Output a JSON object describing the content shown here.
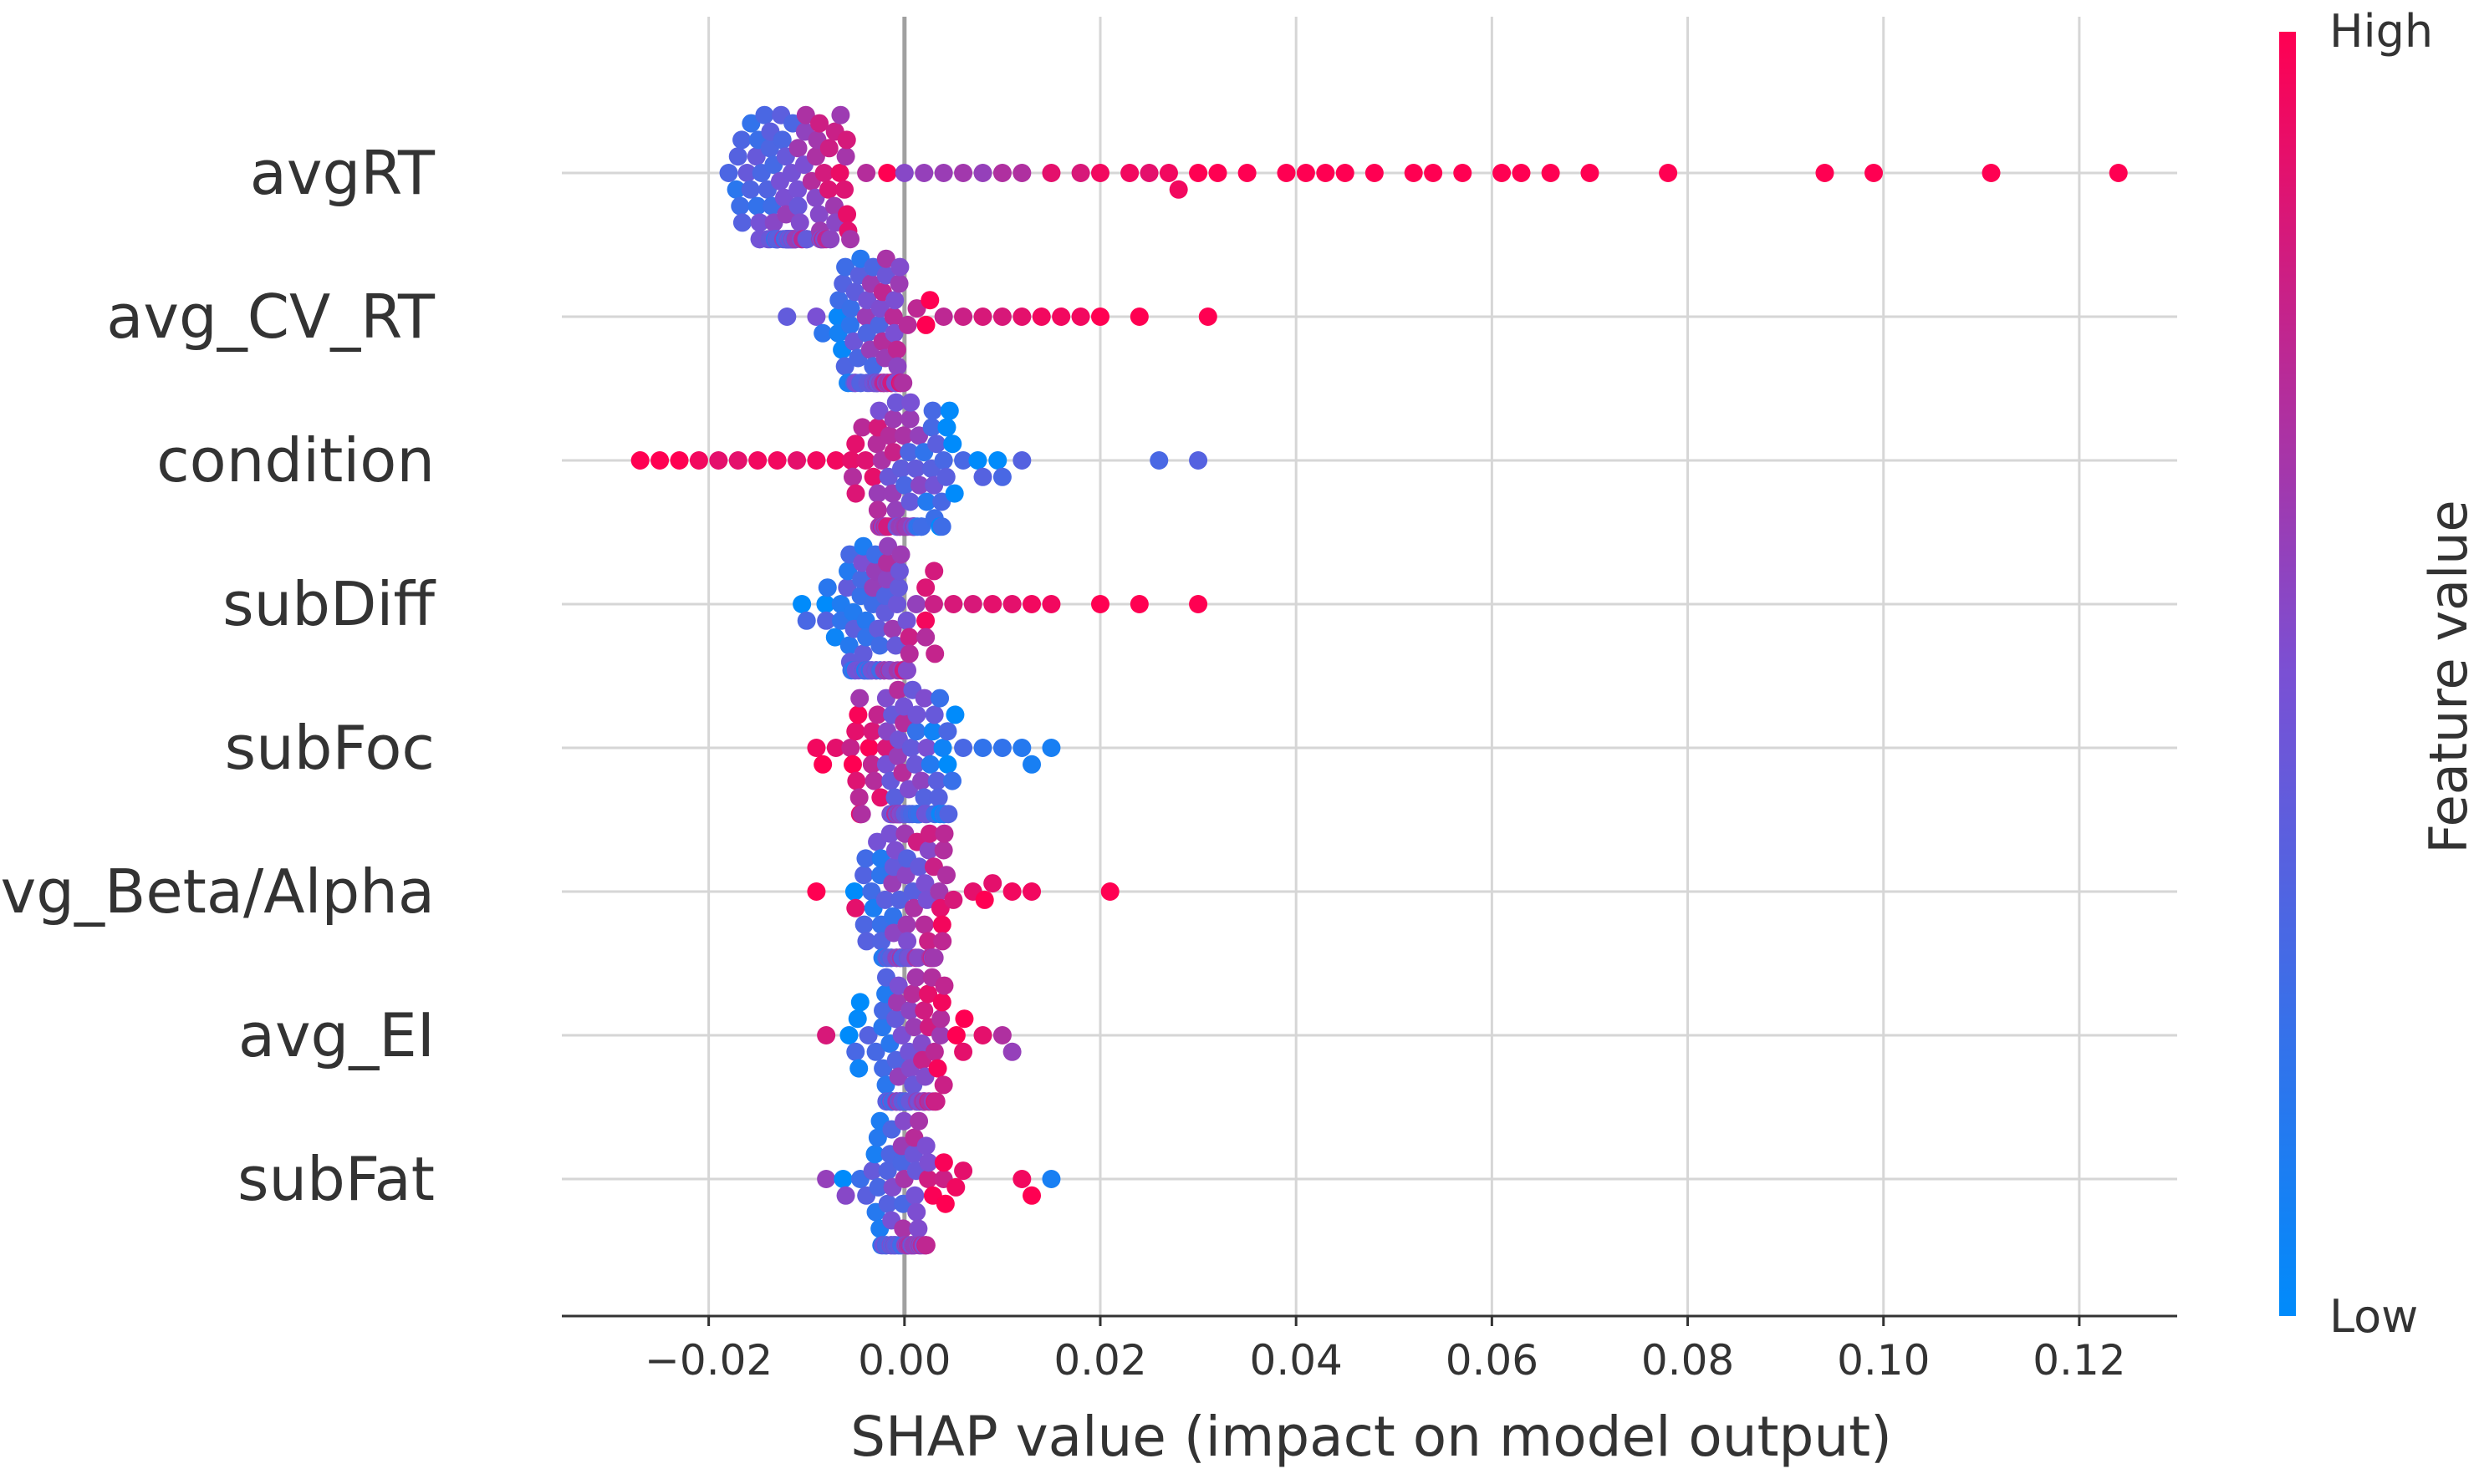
{
  "chart_data": {
    "type": "scatter",
    "subtype": "shap-beeswarm",
    "xlabel": "SHAP value (impact on model output)",
    "xlim": [
      -0.035,
      0.13
    ],
    "x_ticks": [
      -0.02,
      0.0,
      0.02,
      0.04,
      0.06,
      0.08,
      0.1,
      0.12
    ],
    "x_tick_labels": [
      "−0.02",
      "0.00",
      "0.02",
      "0.04",
      "0.06",
      "0.08",
      "0.10",
      "0.12"
    ],
    "grid": true,
    "colorbar": {
      "title": "Feature value",
      "high_label": "High",
      "low_label": "Low",
      "low_color": "#008bfb",
      "mid_color": "#7a50d4",
      "high_color": "#ff0052"
    },
    "features": [
      {
        "name": "avgRT",
        "center": -0.011,
        "spread": 0.0035,
        "n": 110,
        "high_side": 1,
        "tail": [
          [
            0.0,
            0.55
          ],
          [
            0.002,
            0.6
          ],
          [
            0.004,
            0.62
          ],
          [
            0.006,
            0.65
          ],
          [
            0.008,
            0.6
          ],
          [
            0.01,
            0.7
          ],
          [
            0.012,
            0.7
          ],
          [
            0.015,
            0.9
          ],
          [
            0.018,
            0.85
          ],
          [
            0.02,
            0.95
          ],
          [
            0.023,
            0.95
          ],
          [
            0.025,
            0.9
          ],
          [
            0.027,
            0.95
          ],
          [
            0.028,
            0.95
          ],
          [
            0.03,
            1.0
          ],
          [
            0.032,
            1.0
          ],
          [
            0.035,
            1.0
          ],
          [
            0.039,
            1.0
          ],
          [
            0.041,
            1.0
          ],
          [
            0.043,
            1.0
          ],
          [
            0.045,
            1.0
          ],
          [
            0.048,
            1.0
          ],
          [
            0.052,
            1.0
          ],
          [
            0.054,
            1.0
          ],
          [
            0.057,
            1.0
          ],
          [
            0.061,
            1.0
          ],
          [
            0.063,
            1.0
          ],
          [
            0.066,
            1.0
          ],
          [
            0.07,
            1.0
          ],
          [
            0.078,
            1.0
          ],
          [
            0.094,
            1.0
          ],
          [
            0.099,
            1.0
          ],
          [
            0.111,
            1.0
          ],
          [
            0.124,
            1.0
          ]
        ]
      },
      {
        "name": "avg_CV_RT",
        "center": -0.003,
        "spread": 0.0022,
        "n": 80,
        "high_side": 1,
        "tail": [
          [
            0.004,
            0.75
          ],
          [
            0.006,
            0.8
          ],
          [
            0.008,
            0.85
          ],
          [
            0.01,
            0.85
          ],
          [
            0.012,
            0.9
          ],
          [
            0.014,
            0.95
          ],
          [
            0.016,
            0.95
          ],
          [
            0.018,
            0.95
          ],
          [
            0.02,
            1.0
          ],
          [
            0.024,
            1.0
          ],
          [
            0.031,
            1.0
          ],
          [
            -0.012,
            0.4
          ],
          [
            -0.009,
            0.5
          ]
        ]
      },
      {
        "name": "condition",
        "center": 0.0,
        "spread": 0.0025,
        "n": 80,
        "high_side": -1,
        "tail": [
          [
            -0.027,
            1.0
          ],
          [
            -0.025,
            1.0
          ],
          [
            -0.023,
            1.0
          ],
          [
            -0.021,
            0.95
          ],
          [
            -0.019,
            0.9
          ],
          [
            -0.017,
            0.9
          ],
          [
            -0.015,
            0.95
          ],
          [
            -0.013,
            0.95
          ],
          [
            -0.011,
            0.9
          ],
          [
            -0.009,
            0.95
          ],
          [
            -0.007,
            0.95
          ],
          [
            -0.005,
            0.9
          ],
          [
            0.004,
            0.3
          ],
          [
            0.006,
            0.3
          ],
          [
            0.008,
            0.35
          ],
          [
            0.01,
            0.3
          ],
          [
            0.012,
            0.35
          ],
          [
            0.026,
            0.3
          ],
          [
            0.03,
            0.35
          ]
        ]
      },
      {
        "name": "subDiff",
        "center": -0.002,
        "spread": 0.0025,
        "n": 85,
        "high_side": 1,
        "tail": [
          [
            0.003,
            0.8
          ],
          [
            0.005,
            0.85
          ],
          [
            0.007,
            0.85
          ],
          [
            0.009,
            0.9
          ],
          [
            0.011,
            0.9
          ],
          [
            0.013,
            0.95
          ],
          [
            0.015,
            0.95
          ],
          [
            0.02,
            1.0
          ],
          [
            0.024,
            1.0
          ],
          [
            0.03,
            1.0
          ],
          [
            -0.01,
            0.3
          ],
          [
            -0.008,
            0.35
          ]
        ]
      },
      {
        "name": "subFoc",
        "center": 0.0,
        "spread": 0.0025,
        "n": 85,
        "high_side": -1,
        "tail": [
          [
            -0.009,
            0.95
          ],
          [
            -0.007,
            0.9
          ],
          [
            -0.005,
            0.9
          ],
          [
            0.004,
            0.3
          ],
          [
            0.006,
            0.3
          ],
          [
            0.008,
            0.2
          ],
          [
            0.01,
            0.2
          ],
          [
            0.012,
            0.15
          ],
          [
            0.013,
            0.1
          ],
          [
            0.015,
            0.1
          ]
        ]
      },
      {
        "name": "avg_Beta/Alpha",
        "center": 0.0,
        "spread": 0.0025,
        "n": 80,
        "high_side": 1,
        "tail": [
          [
            -0.009,
            1.0
          ],
          [
            -0.005,
            0.9
          ],
          [
            0.003,
            0.8
          ],
          [
            0.005,
            0.85
          ],
          [
            0.007,
            0.9
          ],
          [
            0.009,
            0.9
          ],
          [
            0.011,
            0.95
          ],
          [
            0.013,
            0.95
          ],
          [
            0.021,
            1.0
          ]
        ]
      },
      {
        "name": "avg_EI",
        "center": 0.0,
        "spread": 0.0025,
        "n": 80,
        "high_side": 1,
        "tail": [
          [
            -0.008,
            0.85
          ],
          [
            -0.005,
            0.3
          ],
          [
            0.004,
            0.8
          ],
          [
            0.006,
            0.9
          ],
          [
            0.008,
            0.9
          ],
          [
            0.01,
            0.7
          ],
          [
            0.011,
            0.6
          ]
        ]
      },
      {
        "name": "subFat",
        "center": 0.0,
        "spread": 0.0022,
        "n": 80,
        "high_side": 1,
        "tail": [
          [
            -0.008,
            0.6
          ],
          [
            -0.006,
            0.55
          ],
          [
            0.004,
            0.8
          ],
          [
            0.006,
            0.9
          ],
          [
            0.012,
            0.95
          ],
          [
            0.013,
            1.0
          ],
          [
            0.015,
            0.1
          ]
        ]
      }
    ]
  }
}
